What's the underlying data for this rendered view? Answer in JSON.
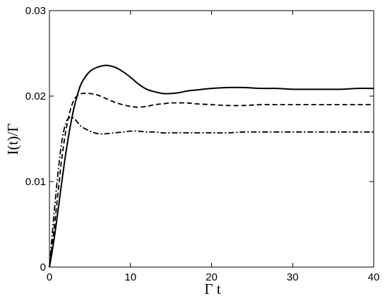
{
  "chart_data": {
    "type": "line",
    "title": "",
    "xlabel": "Γ t",
    "ylabel": "I(t)/Γ",
    "xlim": [
      0,
      40
    ],
    "ylim": [
      0,
      0.03
    ],
    "x_ticks": [
      {
        "value": 0,
        "label": "0"
      },
      {
        "value": 10,
        "label": "10"
      },
      {
        "value": 20,
        "label": "20"
      },
      {
        "value": 30,
        "label": "30"
      },
      {
        "value": 40,
        "label": "40"
      }
    ],
    "y_ticks": [
      {
        "value": 0,
        "label": "0"
      },
      {
        "value": 0.01,
        "label": "0.01"
      },
      {
        "value": 0.02,
        "label": "0.02"
      },
      {
        "value": 0.03,
        "label": "0.03"
      }
    ],
    "grid": false,
    "legend": "none",
    "series": [
      {
        "style": "solid",
        "color": "#000000",
        "x": [
          0,
          0.5,
          1,
          1.5,
          2,
          2.5,
          3,
          3.5,
          4,
          5,
          6,
          7,
          8,
          9,
          10,
          11,
          12,
          13,
          14,
          15,
          16,
          17,
          18,
          20,
          22,
          24,
          26,
          28,
          30,
          32,
          34,
          36,
          38,
          40
        ],
        "values": [
          0,
          0.0028,
          0.0062,
          0.0098,
          0.0132,
          0.0161,
          0.0185,
          0.0203,
          0.0216,
          0.0229,
          0.0234,
          0.0236,
          0.0234,
          0.0229,
          0.0222,
          0.0214,
          0.0208,
          0.0205,
          0.0203,
          0.0203,
          0.0204,
          0.0206,
          0.0207,
          0.0209,
          0.021,
          0.021,
          0.0209,
          0.0209,
          0.0208,
          0.0208,
          0.0208,
          0.0208,
          0.0209,
          0.0209
        ]
      },
      {
        "style": "dashed",
        "color": "#000000",
        "x": [
          0,
          0.5,
          1,
          1.5,
          2,
          2.5,
          3,
          3.5,
          4,
          5,
          6,
          7,
          8,
          9,
          10,
          11,
          12,
          13,
          14,
          15,
          16,
          17,
          18,
          20,
          22,
          24,
          26,
          28,
          30,
          32,
          34,
          36,
          38,
          40
        ],
        "values": [
          0,
          0.0038,
          0.0082,
          0.0125,
          0.0158,
          0.0181,
          0.0195,
          0.0201,
          0.0203,
          0.0203,
          0.0201,
          0.0197,
          0.0193,
          0.019,
          0.0188,
          0.0187,
          0.0188,
          0.019,
          0.0191,
          0.0192,
          0.0192,
          0.0192,
          0.0191,
          0.019,
          0.0189,
          0.0189,
          0.019,
          0.019,
          0.019,
          0.019,
          0.019,
          0.019,
          0.019,
          0.019
        ]
      },
      {
        "style": "dash-dot",
        "color": "#000000",
        "x": [
          0,
          0.5,
          1,
          1.5,
          2,
          2.5,
          3,
          3.5,
          4,
          5,
          6,
          7,
          8,
          9,
          10,
          11,
          12,
          13,
          14,
          15,
          16,
          17,
          18,
          20,
          22,
          24,
          26,
          28,
          30,
          32,
          34,
          36,
          38,
          40
        ],
        "values": [
          0,
          0.0055,
          0.0105,
          0.0145,
          0.0168,
          0.0175,
          0.0174,
          0.0169,
          0.0164,
          0.0159,
          0.0156,
          0.0156,
          0.0157,
          0.0158,
          0.0159,
          0.0159,
          0.0158,
          0.0158,
          0.0157,
          0.0157,
          0.0157,
          0.0157,
          0.0157,
          0.0157,
          0.0157,
          0.0158,
          0.0158,
          0.0158,
          0.0158,
          0.0158,
          0.0158,
          0.0158,
          0.0158,
          0.0158
        ]
      }
    ]
  }
}
